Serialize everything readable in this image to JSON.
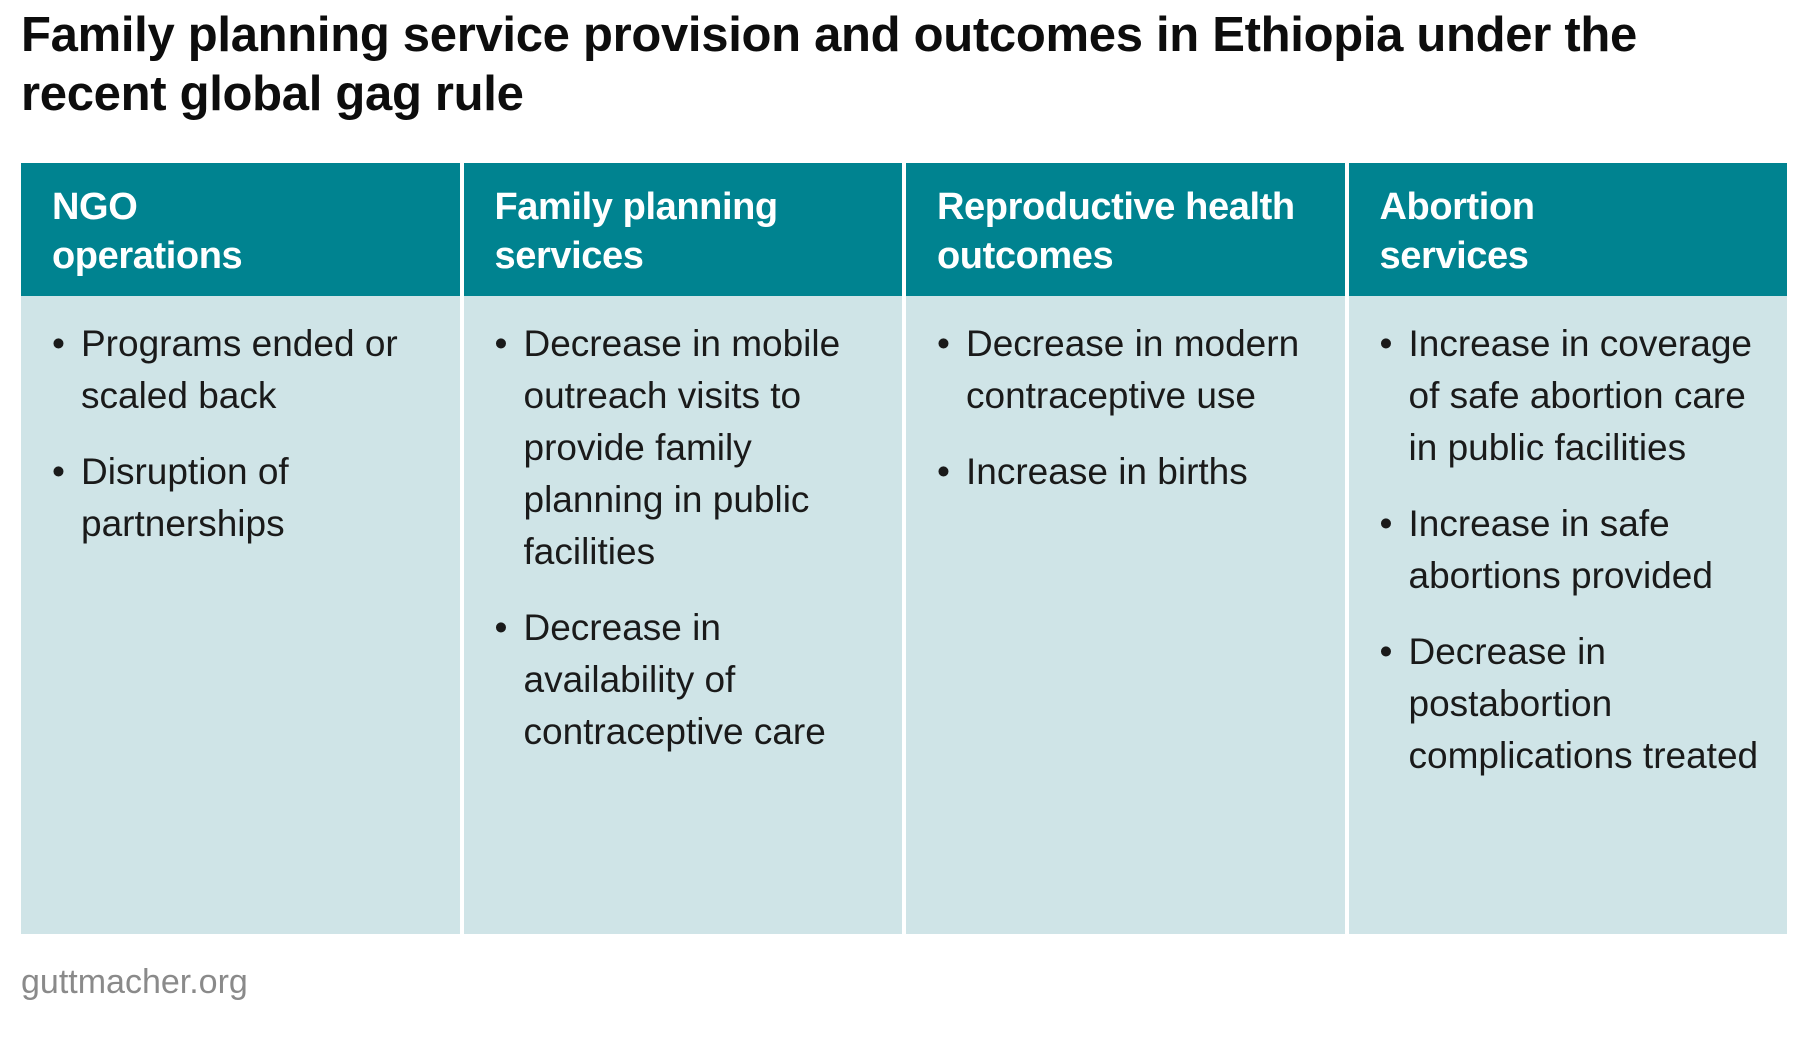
{
  "title": "Family planning service provision and outcomes in Ethiopia under the recent global gag rule",
  "colors": {
    "header_bg": "#008390",
    "body_bg": "#cfe4e7",
    "header_text": "#ffffff",
    "source_text": "#8a8a8a"
  },
  "bullet_glyph": "•",
  "columns": [
    {
      "header_lines": [
        "NGO",
        "operations"
      ],
      "items": [
        "Programs ended or scaled back",
        "Disruption of partnerships"
      ]
    },
    {
      "header_lines": [
        "Family planning",
        "services"
      ],
      "items": [
        "Decrease in mobile outreach visits to provide family planning in public facilities",
        "Decrease in availability of contraceptive care"
      ]
    },
    {
      "header_lines": [
        "Reproductive health",
        "outcomes"
      ],
      "items": [
        "Decrease in modern contraceptive use",
        "Increase in births"
      ]
    },
    {
      "header_lines": [
        "Abortion",
        "services"
      ],
      "items": [
        "Increase in coverage of safe abortion care in public facilities",
        "Increase in safe abortions provided",
        "Decrease in postabortion complications treated"
      ]
    }
  ],
  "source": "guttmacher.org"
}
